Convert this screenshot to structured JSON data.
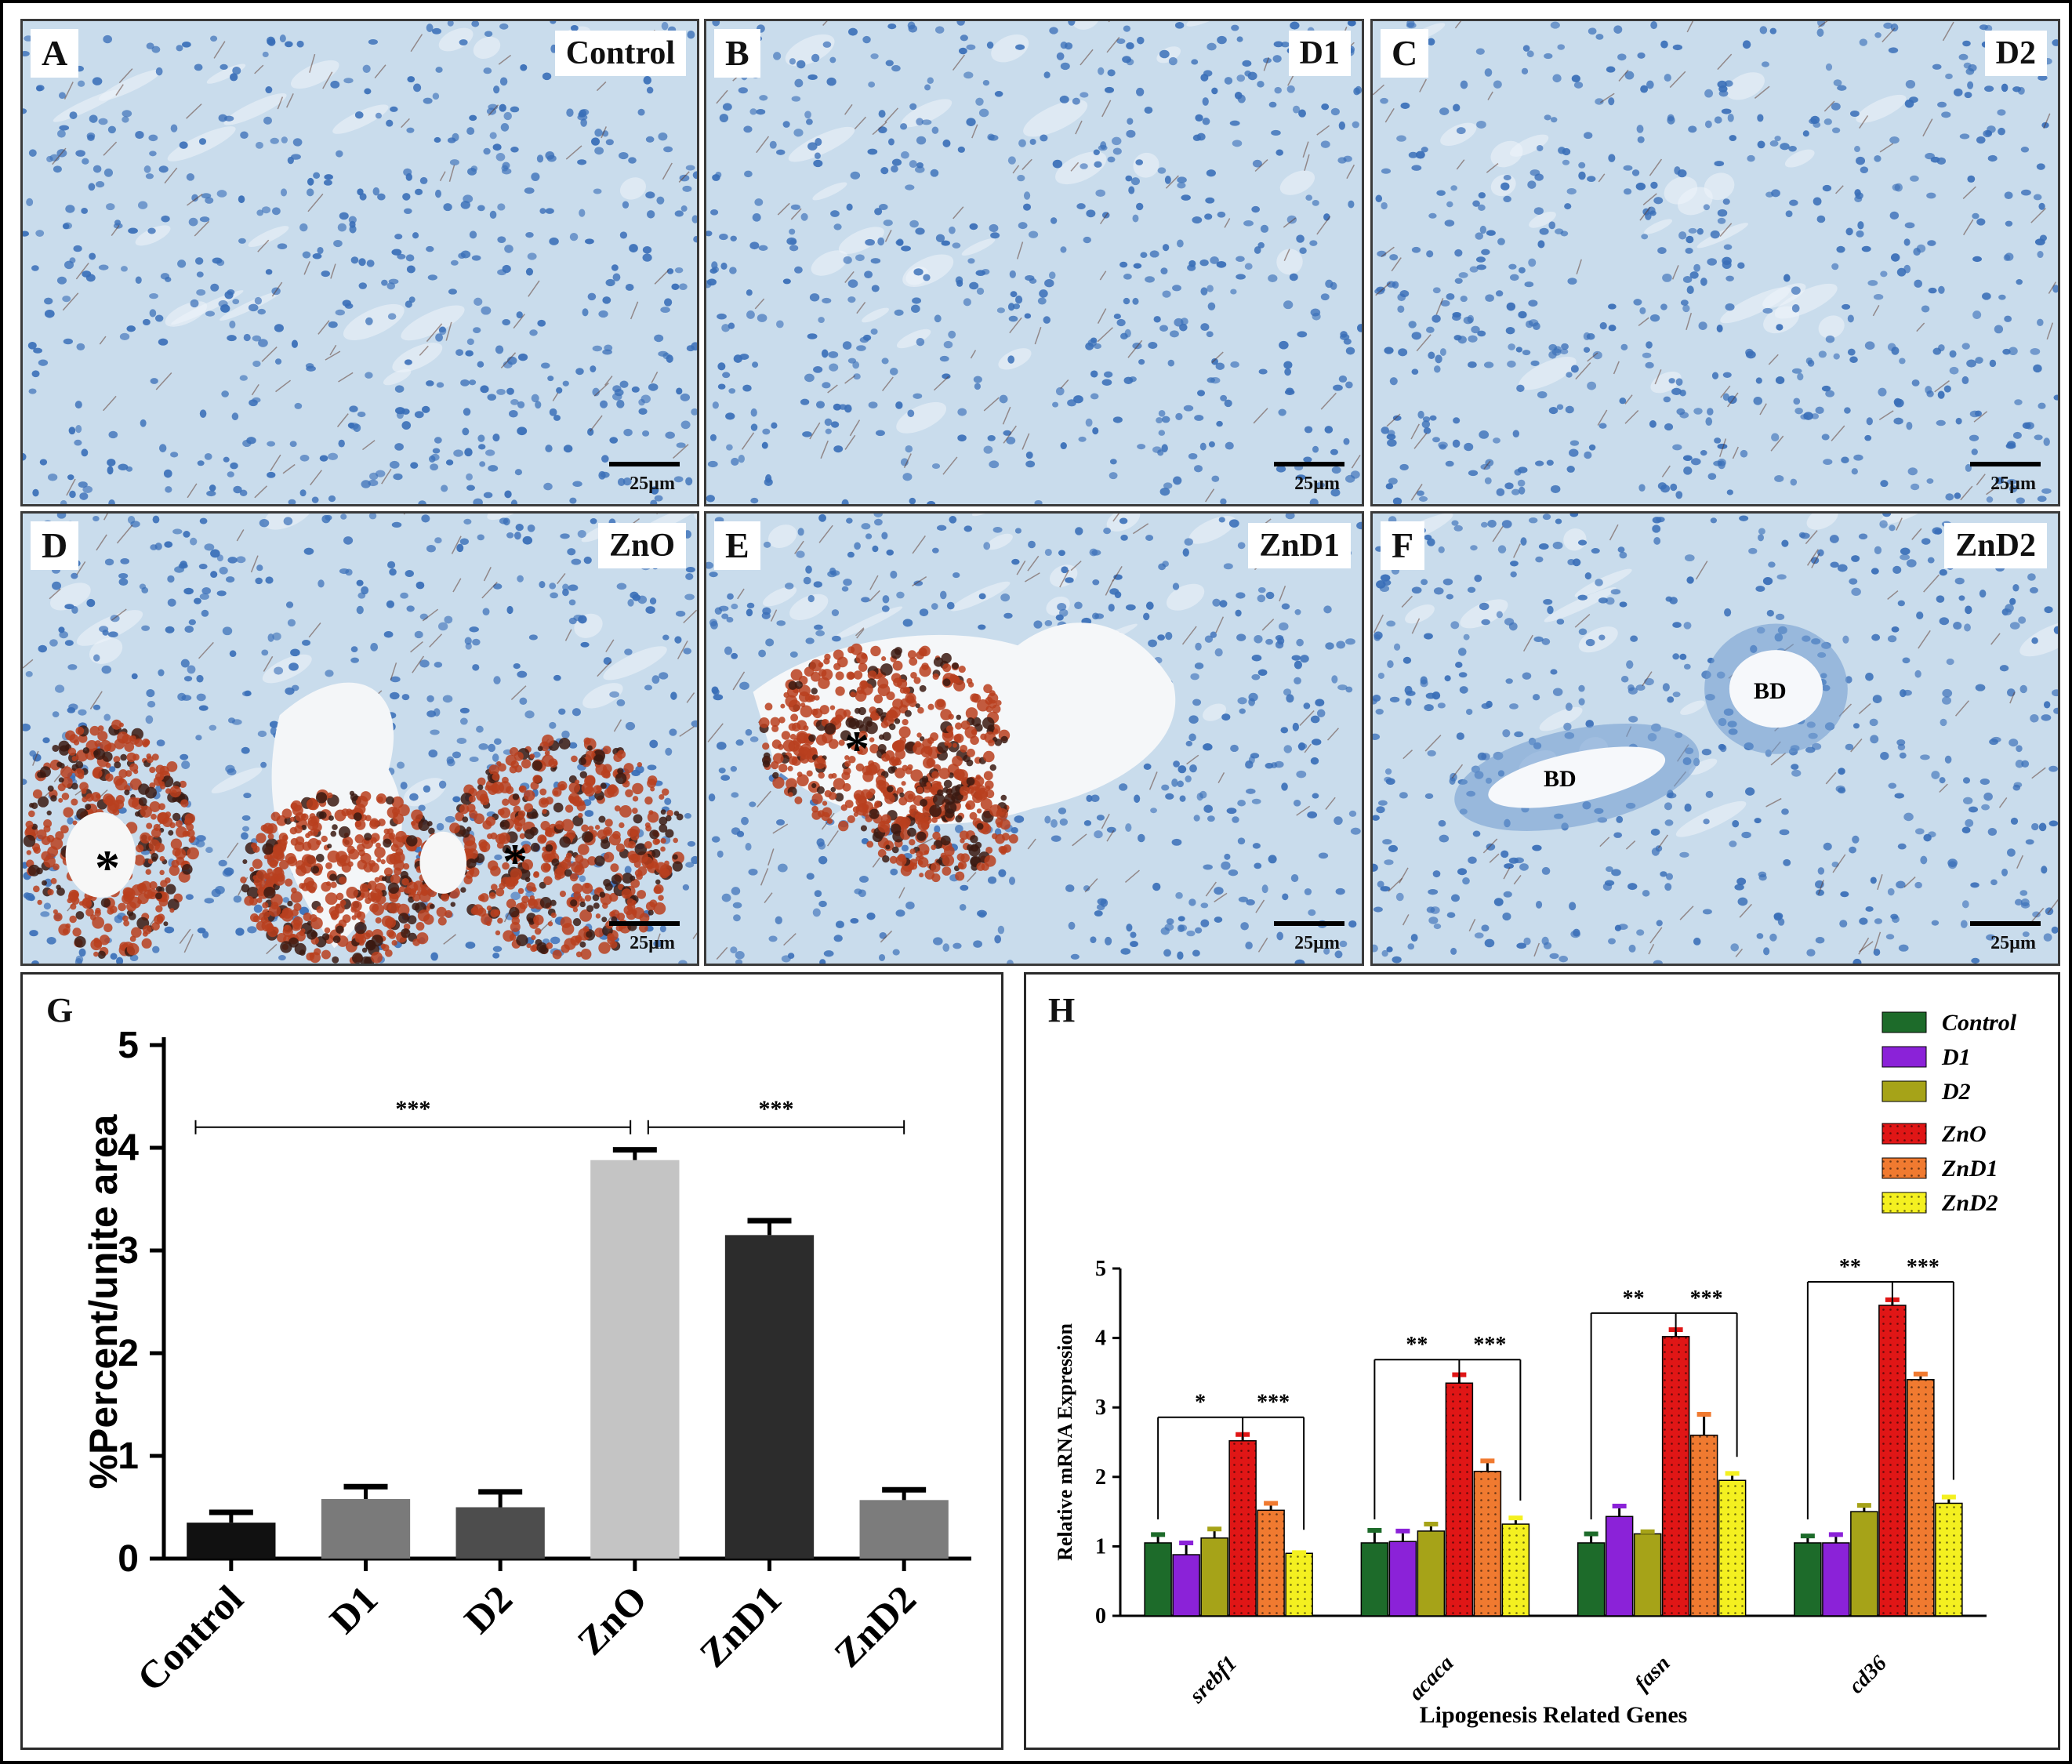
{
  "panels": [
    {
      "letter": "A",
      "label": "Control",
      "scale": "25µm"
    },
    {
      "letter": "B",
      "label": "D1",
      "scale": "25µm"
    },
    {
      "letter": "C",
      "label": "D2",
      "scale": "25µm"
    },
    {
      "letter": "D",
      "label": "ZnO",
      "scale": "25µm"
    },
    {
      "letter": "E",
      "label": "ZnD1",
      "scale": "25µm"
    },
    {
      "letter": "F",
      "label": "ZnD2",
      "scale": "25µm"
    }
  ],
  "annotations": {
    "asterisk": "*",
    "bd": "BD"
  },
  "colors": {
    "tissue_bg": "#c9dcec",
    "nuclei": "#3a6fb8",
    "stain": "#b8401e"
  },
  "chart_data": [
    {
      "panel_letter": "G",
      "type": "bar",
      "categories": [
        "Control",
        "D1",
        "D2",
        "ZnO",
        "ZnD1",
        "ZnD2"
      ],
      "values": [
        0.35,
        0.58,
        0.5,
        3.88,
        3.15,
        0.57
      ],
      "errors": [
        0.1,
        0.12,
        0.15,
        0.1,
        0.14,
        0.1
      ],
      "colors": [
        "#111111",
        "#7a7a7a",
        "#4d4d4d",
        "#c4c4c4",
        "#2c2c2c",
        "#7c7c7c"
      ],
      "ylabel": "%Percent/unite area",
      "xlabel": "",
      "ylim": [
        0,
        5
      ],
      "yticks": [
        "0",
        "1",
        "2",
        "3",
        "4",
        "5"
      ],
      "significance": [
        {
          "from": "Control",
          "to": "ZnO",
          "label": "***"
        },
        {
          "from": "ZnO",
          "to": "ZnD2",
          "label": "***"
        }
      ]
    },
    {
      "panel_letter": "H",
      "type": "bar",
      "categories": [
        "srebf1",
        "acaca",
        "fasn",
        "cd36"
      ],
      "ylabel": "Relative mRNA Expression",
      "xlabel": "Lipogenesis Related Genes",
      "ylim": [
        0,
        5
      ],
      "yticks": [
        "0",
        "1",
        "2",
        "3",
        "4",
        "5"
      ],
      "legend_position": "top-right",
      "series": [
        {
          "name": "Control",
          "color": "#1d6b2a",
          "values": [
            1.05,
            1.05,
            1.05,
            1.05
          ],
          "errors": [
            0.12,
            0.18,
            0.13,
            0.1
          ]
        },
        {
          "name": "D1",
          "color": "#8b22d8",
          "values": [
            0.88,
            1.07,
            1.43,
            1.05
          ],
          "errors": [
            0.17,
            0.15,
            0.15,
            0.12
          ]
        },
        {
          "name": "D2",
          "color": "#a6a318",
          "values": [
            1.12,
            1.22,
            1.18,
            1.5
          ],
          "errors": [
            0.13,
            0.1,
            0.03,
            0.09
          ]
        },
        {
          "name": "ZnO",
          "color": "#e01616",
          "values": [
            2.52,
            3.35,
            4.02,
            4.47
          ],
          "errors": [
            0.09,
            0.12,
            0.1,
            0.08
          ]
        },
        {
          "name": "ZnD1",
          "color": "#f07a30",
          "values": [
            1.52,
            2.08,
            2.6,
            3.4
          ],
          "errors": [
            0.1,
            0.15,
            0.3,
            0.08
          ]
        },
        {
          "name": "ZnD2",
          "color": "#f4f020",
          "values": [
            0.9,
            1.32,
            1.95,
            1.62
          ],
          "errors": [
            0.01,
            0.09,
            0.1,
            0.09
          ]
        }
      ],
      "significance": [
        {
          "category": "srebf1",
          "left": "*",
          "right": "***"
        },
        {
          "category": "acaca",
          "left": "**",
          "right": "***"
        },
        {
          "category": "fasn",
          "left": "**",
          "right": "***"
        },
        {
          "category": "cd36",
          "left": "**",
          "right": "***"
        }
      ]
    }
  ]
}
